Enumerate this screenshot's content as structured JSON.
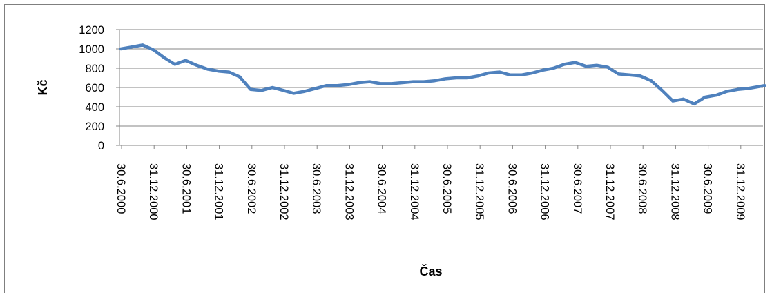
{
  "chart_data": {
    "type": "line",
    "title": "",
    "xlabel": "Čas",
    "ylabel": "Kč",
    "ylim": [
      0,
      1200
    ],
    "y_ticks": [
      "0",
      "200",
      "400",
      "600",
      "800",
      "1000",
      "1200"
    ],
    "x_ticks": [
      "30.6.2000",
      "31.12.2000",
      "30.6.2001",
      "31.12.2001",
      "30.6.2002",
      "31.12.2002",
      "30.6.2003",
      "31.12.2003",
      "30.6.2004",
      "31.12.2004",
      "30.6.2005",
      "31.12.2005",
      "30.6.2006",
      "31.12.2006",
      "30.6.2007",
      "31.12.2007",
      "30.6.2008",
      "31.12.2008",
      "30.6.2009",
      "31.12.2009"
    ],
    "grid": true,
    "legend": "none",
    "line_color": "#4f81bd",
    "x_range": [
      "2000-06-30",
      "2010-05-31"
    ],
    "series": [
      {
        "x": [
          "2000-06-30",
          "2000-08-31",
          "2000-10-31",
          "2000-12-31",
          "2001-02-28",
          "2001-04-30",
          "2001-06-30",
          "2001-08-31",
          "2001-10-31",
          "2001-12-31",
          "2002-02-28",
          "2002-04-30",
          "2002-06-30",
          "2002-08-31",
          "2002-10-31",
          "2002-12-31",
          "2003-02-28",
          "2003-04-30",
          "2003-06-30",
          "2003-08-31",
          "2003-10-31",
          "2003-12-31",
          "2004-02-29",
          "2004-04-30",
          "2004-06-30",
          "2004-08-31",
          "2004-10-31",
          "2004-12-31",
          "2005-02-28",
          "2005-04-30",
          "2005-06-30",
          "2005-08-31",
          "2005-10-31",
          "2005-12-31",
          "2006-02-28",
          "2006-04-30",
          "2006-06-30",
          "2006-08-31",
          "2006-10-31",
          "2006-12-31",
          "2007-02-28",
          "2007-04-30",
          "2007-06-30",
          "2007-08-31",
          "2007-10-31",
          "2007-12-31",
          "2008-02-29",
          "2008-04-30",
          "2008-06-30",
          "2008-08-31",
          "2008-10-31",
          "2008-12-31",
          "2009-02-28",
          "2009-04-30",
          "2009-06-30",
          "2009-08-31",
          "2009-10-31",
          "2009-12-31",
          "2010-02-28",
          "2010-04-30",
          "2010-05-31"
        ],
        "values": [
          1000,
          1020,
          1040,
          990,
          910,
          840,
          880,
          830,
          790,
          770,
          760,
          710,
          580,
          570,
          600,
          570,
          540,
          560,
          590,
          620,
          620,
          630,
          650,
          660,
          640,
          640,
          650,
          660,
          660,
          670,
          690,
          700,
          700,
          720,
          750,
          760,
          730,
          730,
          750,
          780,
          800,
          840,
          860,
          820,
          830,
          810,
          740,
          730,
          720,
          670,
          570,
          460,
          480,
          430,
          500,
          520,
          560,
          580,
          590,
          610,
          620
        ]
      }
    ]
  }
}
